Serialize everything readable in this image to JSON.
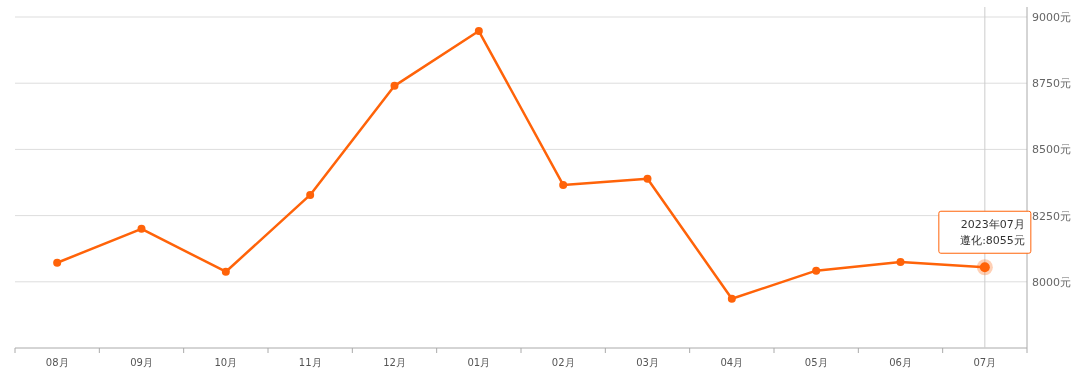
{
  "chart_data": {
    "type": "line",
    "categories": [
      "08月",
      "09月",
      "10月",
      "11月",
      "12月",
      "01月",
      "02月",
      "03月",
      "04月",
      "05月",
      "06月",
      "07月"
    ],
    "series": [
      {
        "color": "#ff6309",
        "values": [
          8072,
          8200,
          8038,
          8328,
          8740,
          8947,
          8366,
          8389,
          7936,
          8042,
          8075,
          8055
        ]
      }
    ],
    "ylim": [
      7750,
      9000
    ],
    "yticks": [
      {
        "value": 8000,
        "label": "8000元"
      },
      {
        "value": 8250,
        "label": "8250元"
      },
      {
        "value": 8500,
        "label": "8500元"
      },
      {
        "value": 8750,
        "label": "8750元"
      },
      {
        "value": 9000,
        "label": "9000元"
      }
    ],
    "grid": "y",
    "marker": "circle",
    "line_style": "solid",
    "ref_lines": [
      {
        "axis": "x",
        "value": "07月",
        "color": "#cccccc"
      }
    ],
    "annotations": [
      "2023年07月",
      "遵化:8055元"
    ]
  }
}
